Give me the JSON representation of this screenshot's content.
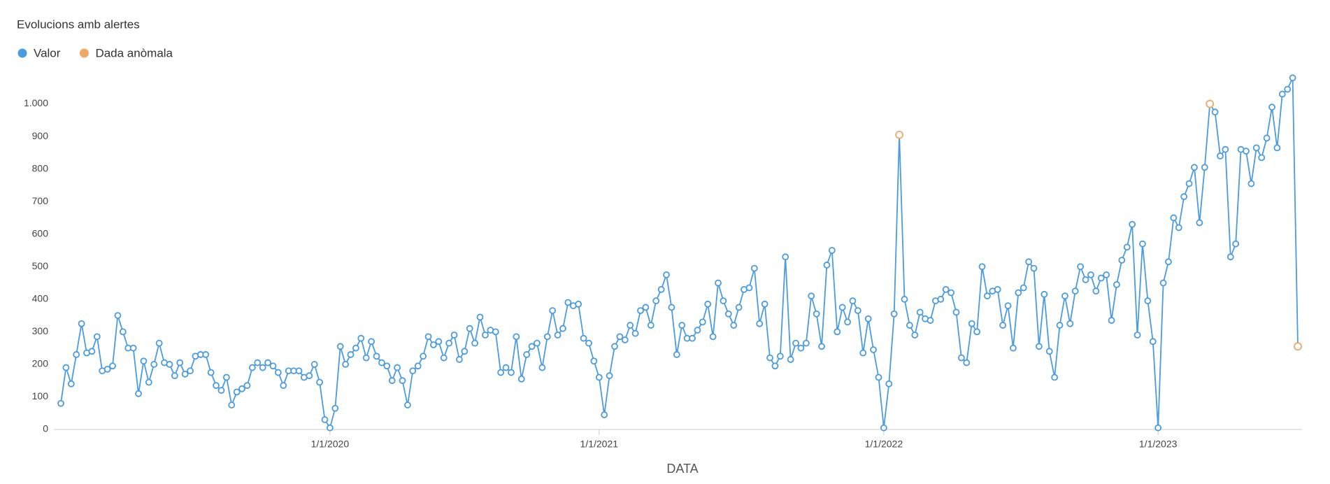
{
  "chart_data": {
    "type": "line",
    "title": "Evolucions amb alertes",
    "xlabel": "DATA",
    "categories": [
      null,
      null,
      null,
      null,
      null,
      null,
      null,
      null,
      null,
      null,
      null,
      null,
      null,
      null,
      null,
      null,
      null,
      null,
      null,
      null,
      null,
      null,
      null,
      null,
      null,
      null,
      null,
      null,
      null,
      null,
      null,
      null,
      null,
      null,
      null,
      null,
      null,
      null,
      null,
      null,
      null,
      null,
      null,
      null,
      null,
      null,
      null,
      null,
      null,
      null,
      null,
      null,
      "1/1/2020",
      null,
      null,
      null,
      null,
      null,
      null,
      null,
      null,
      null,
      null,
      null,
      null,
      null,
      null,
      null,
      null,
      null,
      null,
      null,
      null,
      null,
      null,
      null,
      null,
      null,
      null,
      null,
      null,
      null,
      null,
      null,
      null,
      null,
      null,
      null,
      null,
      null,
      null,
      null,
      null,
      null,
      null,
      null,
      null,
      null,
      null,
      null,
      null,
      null,
      null,
      null,
      "1/1/2021",
      null,
      null,
      null,
      null,
      null,
      null,
      null,
      null,
      null,
      null,
      null,
      null,
      null,
      null,
      null,
      null,
      null,
      null,
      null,
      null,
      null,
      null,
      null,
      null,
      null,
      null,
      null,
      null,
      null,
      null,
      null,
      null,
      null,
      null,
      null,
      null,
      null,
      null,
      null,
      null,
      null,
      null,
      null,
      null,
      null,
      null,
      null,
      null,
      null,
      null,
      null,
      null,
      null,
      null,
      "1/1/2022",
      null,
      null,
      null,
      null,
      null,
      null,
      null,
      null,
      null,
      null,
      null,
      null,
      null,
      null,
      null,
      null,
      null,
      null,
      null,
      null,
      null,
      null,
      null,
      null,
      null,
      null,
      null,
      null,
      null,
      null,
      null,
      null,
      null,
      null,
      null,
      null,
      null,
      null,
      null,
      null,
      null,
      null,
      null,
      null,
      null,
      null,
      null,
      null,
      null,
      null,
      null,
      null,
      "1/1/2023",
      null,
      null,
      null,
      null,
      null,
      null,
      null,
      null,
      null,
      null,
      null,
      null,
      null,
      null,
      null,
      null,
      null,
      null,
      null,
      null,
      null,
      null,
      null,
      null,
      null,
      null,
      null
    ],
    "series": [
      {
        "name": "Valor",
        "color": "#4a9be0",
        "values": [
          80,
          190,
          140,
          230,
          325,
          235,
          240,
          285,
          180,
          185,
          195,
          350,
          300,
          250,
          250,
          110,
          210,
          145,
          200,
          265,
          205,
          200,
          165,
          205,
          170,
          180,
          225,
          230,
          230,
          175,
          135,
          120,
          160,
          75,
          115,
          125,
          135,
          190,
          205,
          190,
          205,
          195,
          175,
          135,
          180,
          180,
          180,
          160,
          165,
          200,
          145,
          30,
          5,
          65,
          255,
          200,
          230,
          250,
          280,
          220,
          270,
          225,
          205,
          195,
          150,
          190,
          150,
          75,
          180,
          195,
          225,
          285,
          260,
          270,
          220,
          265,
          290,
          215,
          240,
          310,
          265,
          345,
          290,
          305,
          300,
          175,
          190,
          175,
          285,
          155,
          230,
          255,
          265,
          190,
          285,
          365,
          290,
          310,
          390,
          380,
          385,
          280,
          265,
          210,
          160,
          45,
          165,
          255,
          285,
          275,
          320,
          295,
          365,
          375,
          320,
          395,
          430,
          475,
          375,
          230,
          320,
          280,
          280,
          305,
          330,
          385,
          285,
          450,
          395,
          355,
          320,
          375,
          430,
          435,
          495,
          325,
          385,
          220,
          195,
          225,
          530,
          215,
          265,
          250,
          265,
          410,
          355,
          255,
          505,
          550,
          300,
          375,
          330,
          395,
          365,
          235,
          340,
          245,
          160,
          5,
          140,
          355,
          905,
          400,
          320,
          290,
          360,
          340,
          335,
          395,
          400,
          430,
          420,
          360,
          220,
          205,
          325,
          300,
          500,
          410,
          425,
          430,
          320,
          380,
          250,
          420,
          435,
          515,
          495,
          255,
          415,
          240,
          160,
          320,
          410,
          325,
          425,
          500,
          460,
          475,
          425,
          465,
          475,
          335,
          445,
          520,
          560,
          630,
          290,
          570,
          395,
          270,
          5,
          450,
          515,
          650,
          620,
          715,
          755,
          805,
          635,
          805,
          1000,
          975,
          840,
          860,
          530,
          570,
          860,
          855,
          755,
          865,
          835,
          895,
          990,
          865,
          1030,
          1045,
          1080,
          255
        ]
      },
      {
        "name": "Dada anòmala",
        "color": "#f0a868",
        "values": [
          null,
          null,
          null,
          null,
          null,
          null,
          null,
          null,
          null,
          null,
          null,
          null,
          null,
          null,
          null,
          null,
          null,
          null,
          null,
          null,
          null,
          null,
          null,
          null,
          null,
          null,
          null,
          null,
          null,
          null,
          null,
          null,
          null,
          null,
          null,
          null,
          null,
          null,
          null,
          null,
          null,
          null,
          null,
          null,
          null,
          null,
          null,
          null,
          null,
          null,
          null,
          null,
          null,
          null,
          null,
          null,
          null,
          null,
          null,
          null,
          null,
          null,
          null,
          null,
          null,
          null,
          null,
          null,
          null,
          null,
          null,
          null,
          null,
          null,
          null,
          null,
          null,
          null,
          null,
          null,
          null,
          null,
          null,
          null,
          null,
          null,
          null,
          null,
          null,
          null,
          null,
          null,
          null,
          null,
          null,
          null,
          null,
          null,
          null,
          null,
          null,
          null,
          null,
          null,
          null,
          null,
          null,
          null,
          null,
          null,
          null,
          null,
          null,
          null,
          null,
          null,
          null,
          null,
          null,
          null,
          null,
          null,
          null,
          null,
          null,
          null,
          null,
          null,
          null,
          null,
          null,
          null,
          null,
          null,
          null,
          null,
          null,
          null,
          null,
          null,
          null,
          null,
          null,
          null,
          null,
          null,
          null,
          null,
          null,
          null,
          null,
          null,
          null,
          null,
          null,
          null,
          null,
          null,
          null,
          null,
          null,
          null,
          905,
          null,
          null,
          null,
          null,
          null,
          null,
          null,
          null,
          null,
          null,
          null,
          null,
          null,
          null,
          null,
          null,
          null,
          null,
          null,
          null,
          null,
          null,
          null,
          null,
          null,
          null,
          null,
          null,
          null,
          null,
          null,
          null,
          null,
          null,
          null,
          null,
          null,
          null,
          null,
          null,
          null,
          null,
          null,
          null,
          null,
          null,
          null,
          null,
          null,
          null,
          null,
          null,
          null,
          null,
          null,
          null,
          null,
          null,
          null,
          1000,
          null,
          null,
          null,
          null,
          null,
          null,
          null,
          null,
          null,
          null,
          null,
          null,
          null,
          null,
          null,
          null,
          255
        ]
      }
    ],
    "ylim": [
      0,
      1100
    ],
    "yticks": [
      0,
      100,
      200,
      300,
      400,
      500,
      600,
      700,
      800,
      900,
      {
        "value": 1000,
        "label": "1.000"
      }
    ],
    "grid": false,
    "legend": "top-left"
  }
}
